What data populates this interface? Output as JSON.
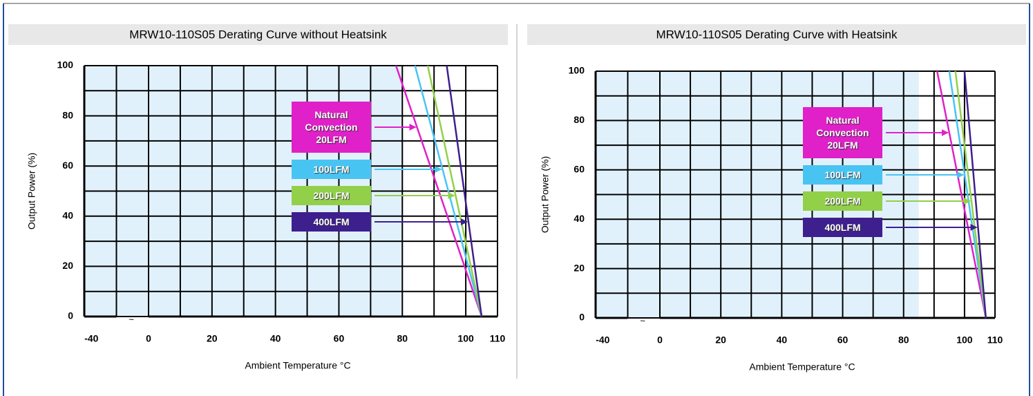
{
  "chart_data": [
    {
      "type": "line",
      "title": "MRW10-110S05 Derating Curve without Heatsink",
      "xlabel": "Ambient Temperature °C",
      "ylabel": "Output Power (%)",
      "xlim": [
        -45,
        110
      ],
      "break_at": 0,
      "break_symbol": "~",
      "ylim": [
        0,
        100
      ],
      "xticks": [
        -40,
        0,
        20,
        40,
        60,
        80,
        100,
        110
      ],
      "yticks": [
        0,
        20,
        40,
        60,
        80,
        100
      ],
      "grid_step": 10,
      "shaded_until": 80,
      "shade_color": "#e1f1fc",
      "series": [
        {
          "name": "Natural Convection 20LFM",
          "color": "#e020c8",
          "x": [
            78,
            105
          ],
          "values": [
            100,
            0
          ]
        },
        {
          "name": "100LFM",
          "color": "#48c4f2",
          "x": [
            84,
            105
          ],
          "values": [
            100,
            0
          ]
        },
        {
          "name": "200LFM",
          "color": "#92d04a",
          "x": [
            88,
            105
          ],
          "values": [
            100,
            0
          ]
        },
        {
          "name": "400LFM",
          "color": "#3e1f8e",
          "x": [
            94,
            105
          ],
          "values": [
            100,
            0
          ]
        }
      ]
    },
    {
      "type": "line",
      "title": "MRW10-110S05 Derating Curve with Heatsink",
      "xlabel": "Ambient Temperature °C",
      "ylabel": "Output Power (%)",
      "xlim": [
        -45,
        110
      ],
      "break_at": 0,
      "break_symbol": "~",
      "ylim": [
        0,
        100
      ],
      "xticks": [
        -40,
        0,
        20,
        40,
        60,
        80,
        100,
        110
      ],
      "yticks": [
        0,
        20,
        40,
        60,
        80,
        100
      ],
      "grid_step": 10,
      "shaded_until": 85,
      "shade_color": "#e1f1fc",
      "series": [
        {
          "name": "Natural Convection 20LFM",
          "color": "#e020c8",
          "x": [
            91,
            107
          ],
          "values": [
            100,
            0
          ]
        },
        {
          "name": "100LFM",
          "color": "#48c4f2",
          "x": [
            95,
            107
          ],
          "values": [
            100,
            0
          ]
        },
        {
          "name": "200LFM",
          "color": "#92d04a",
          "x": [
            97,
            107
          ],
          "values": [
            100,
            0
          ]
        },
        {
          "name": "400LFM",
          "color": "#3e1f8e",
          "x": [
            100,
            107
          ],
          "values": [
            100,
            0
          ]
        }
      ]
    }
  ]
}
